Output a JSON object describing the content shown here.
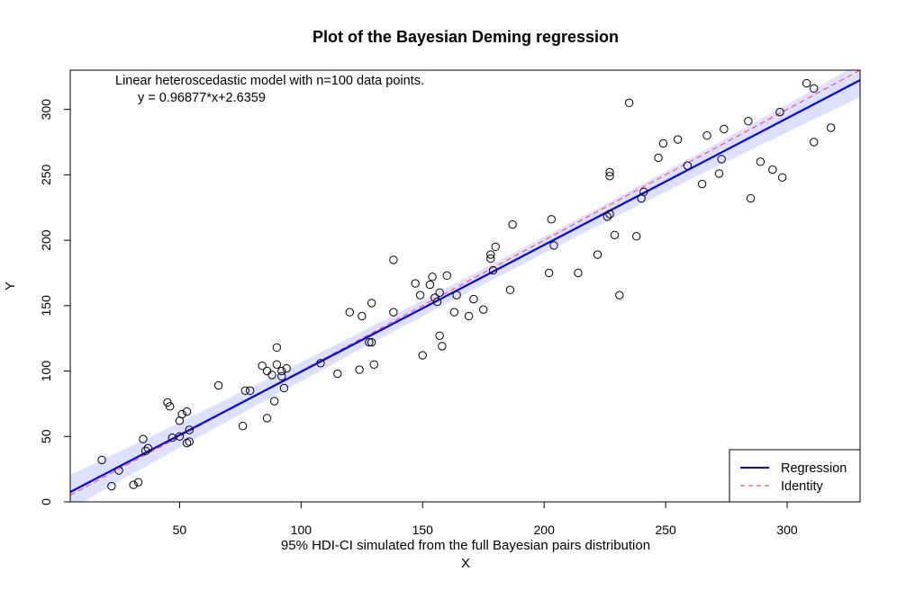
{
  "chart_data": {
    "type": "scatter",
    "title": "Plot of the Bayesian Deming regression",
    "xlabel": "X",
    "ylabel": "Y",
    "subtitle": "95% HDI-CI simulated from the full Bayesian pairs distribution",
    "annotations": [
      "Linear heteroscedastic model with n=100 data points.",
      "y = 0.96877*x+2.6359"
    ],
    "xlim": [
      5,
      330
    ],
    "ylim": [
      0,
      330
    ],
    "x_ticks": [
      50,
      100,
      150,
      200,
      250,
      300
    ],
    "y_ticks": [
      0,
      50,
      100,
      150,
      200,
      250,
      300
    ],
    "x_tick_labels": [
      "50",
      "100",
      "150",
      "200",
      "250",
      "300"
    ],
    "y_tick_labels": [
      "0",
      "50",
      "100",
      "150",
      "200",
      "250",
      "300"
    ],
    "grid": false,
    "regression": {
      "slope": 0.96877,
      "intercept": 2.6359,
      "color": "#0000ff"
    },
    "identity": {
      "slope": 1,
      "intercept": 0,
      "color": "#ff5555"
    },
    "ci_band": {
      "half_width_at_center": 6,
      "half_width_at_ends": 13,
      "color": "#dde0ff"
    },
    "legend": {
      "position": "bottom-right",
      "items": [
        {
          "label": "Regression",
          "color": "#0000ff",
          "style": "solid"
        },
        {
          "label": "Identity",
          "color": "#ff5555",
          "style": "dashed"
        }
      ]
    },
    "points": [
      [
        18,
        32
      ],
      [
        22,
        12
      ],
      [
        25,
        24
      ],
      [
        31,
        13
      ],
      [
        33,
        15
      ],
      [
        35,
        48
      ],
      [
        36,
        39
      ],
      [
        37,
        41
      ],
      [
        45,
        76
      ],
      [
        46,
        73
      ],
      [
        47,
        49
      ],
      [
        50,
        50
      ],
      [
        50,
        62
      ],
      [
        51,
        67
      ],
      [
        53,
        45
      ],
      [
        53,
        69
      ],
      [
        54,
        55
      ],
      [
        54,
        46
      ],
      [
        66,
        89
      ],
      [
        76,
        58
      ],
      [
        77,
        85
      ],
      [
        79,
        85
      ],
      [
        84,
        104
      ],
      [
        86,
        100
      ],
      [
        86,
        64
      ],
      [
        88,
        97
      ],
      [
        89,
        77
      ],
      [
        90,
        105
      ],
      [
        90,
        118
      ],
      [
        92,
        96
      ],
      [
        92,
        100
      ],
      [
        93,
        87
      ],
      [
        94,
        102
      ],
      [
        108,
        106
      ],
      [
        115,
        98
      ],
      [
        120,
        145
      ],
      [
        124,
        101
      ],
      [
        125,
        142
      ],
      [
        128,
        122
      ],
      [
        129,
        152
      ],
      [
        129,
        122
      ],
      [
        130,
        105
      ],
      [
        138,
        185
      ],
      [
        138,
        145
      ],
      [
        147,
        167
      ],
      [
        149,
        158
      ],
      [
        150,
        112
      ],
      [
        153,
        166
      ],
      [
        154,
        172
      ],
      [
        155,
        156
      ],
      [
        156,
        153
      ],
      [
        157,
        127
      ],
      [
        157,
        160
      ],
      [
        158,
        119
      ],
      [
        160,
        173
      ],
      [
        163,
        145
      ],
      [
        164,
        158
      ],
      [
        169,
        142
      ],
      [
        171,
        155
      ],
      [
        175,
        147
      ],
      [
        178,
        189
      ],
      [
        178,
        186
      ],
      [
        179,
        177
      ],
      [
        180,
        195
      ],
      [
        186,
        162
      ],
      [
        187,
        212
      ],
      [
        202,
        175
      ],
      [
        203,
        216
      ],
      [
        204,
        196
      ],
      [
        214,
        175
      ],
      [
        222,
        189
      ],
      [
        226,
        218
      ],
      [
        227,
        220
      ],
      [
        227,
        252
      ],
      [
        227,
        249
      ],
      [
        229,
        204
      ],
      [
        231,
        158
      ],
      [
        235,
        305
      ],
      [
        238,
        203
      ],
      [
        240,
        232
      ],
      [
        241,
        237
      ],
      [
        247,
        263
      ],
      [
        249,
        274
      ],
      [
        255,
        277
      ],
      [
        259,
        257
      ],
      [
        265,
        243
      ],
      [
        267,
        280
      ],
      [
        272,
        251
      ],
      [
        273,
        262
      ],
      [
        274,
        285
      ],
      [
        284,
        291
      ],
      [
        285,
        232
      ],
      [
        289,
        260
      ],
      [
        294,
        254
      ],
      [
        297,
        298
      ],
      [
        298,
        248
      ],
      [
        308,
        320
      ],
      [
        311,
        316
      ],
      [
        311,
        275
      ],
      [
        318,
        286
      ]
    ]
  }
}
